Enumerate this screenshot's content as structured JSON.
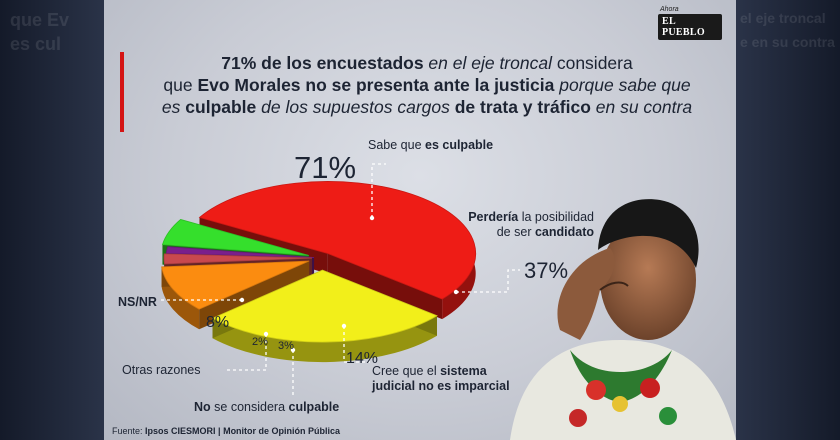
{
  "brand": {
    "top": "Ahora",
    "name": "EL PUEBLO"
  },
  "headline": {
    "l1_a": "71% de los encuestados",
    "l1_b": " en el eje troncal",
    "l1_c": " considera",
    "l2_a": "que ",
    "l2_b": "Evo Morales no se presenta ante la justicia",
    "l2_c": " porque sabe que",
    "l3_a": "es ",
    "l3_b": "culpable",
    "l3_c": " de los supuestos cargos ",
    "l3_d": "de trata y tráfico",
    "l3_e": " en su contra"
  },
  "chart_data": {
    "type": "pie",
    "categories": [
      "Sabe que es culpable",
      "Perdería la posibilidad de ser candidato",
      "Cree que el sistema judicial no es imparcial",
      "No se considera culpable",
      "Otras razones",
      "NS/NR"
    ],
    "values": [
      71,
      37,
      14,
      3,
      2,
      8
    ],
    "unit": "%",
    "colors": [
      "#ee1c16",
      "#f2ef1a",
      "#fb8c10",
      "#c9484e",
      "#7a1f8c",
      "#35df2c"
    ]
  },
  "labels": {
    "culpable": {
      "a": "Sabe que ",
      "b": "es culpable",
      "pct": "71%"
    },
    "candidato": {
      "a": "Perdería",
      "b": " la posibilidad",
      "c": "de ser ",
      "d": "candidato",
      "pct": "37%"
    },
    "sistema": {
      "a": "Cree que el ",
      "b": "sistema",
      "c": "judicial no es imparcial",
      "pct": "14%"
    },
    "no_culpable": {
      "a": "No",
      "b": " se considera ",
      "c": "culpable",
      "pct": "3%"
    },
    "otras": {
      "a": "Otras razones",
      "pct": "2%"
    },
    "nsnr": {
      "a": "NS/NR",
      "pct": "8%"
    }
  },
  "source": {
    "a": "Fuente: ",
    "b": "Ipsos CIESMORI",
    "c": " | Monitor de Opinión Pública"
  },
  "background_text": {
    "left": "que Ev",
    "left2": "es cul",
    "right": "el eje troncal",
    "right2": "e en su contra"
  }
}
